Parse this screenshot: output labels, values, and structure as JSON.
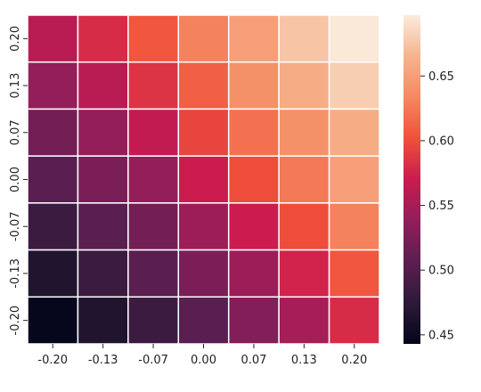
{
  "chart_data": {
    "type": "heatmap",
    "title": "",
    "xlabel": "",
    "ylabel": "",
    "x_categories": [
      "-0.20",
      "-0.13",
      "-0.07",
      "0.00",
      "0.07",
      "0.13",
      "0.20"
    ],
    "y_categories": [
      "0.20",
      "0.13",
      "0.07",
      "0.00",
      "-0.07",
      "-0.13",
      "-0.20"
    ],
    "values": [
      [
        0.56,
        0.58,
        0.605,
        0.63,
        0.65,
        0.675,
        0.695
      ],
      [
        0.54,
        0.56,
        0.585,
        0.61,
        0.64,
        0.66,
        0.68
      ],
      [
        0.52,
        0.54,
        0.565,
        0.595,
        0.62,
        0.64,
        0.66
      ],
      [
        0.505,
        0.525,
        0.54,
        0.57,
        0.6,
        0.625,
        0.65
      ],
      [
        0.485,
        0.505,
        0.52,
        0.545,
        0.57,
        0.6,
        0.63
      ],
      [
        0.465,
        0.485,
        0.505,
        0.525,
        0.545,
        0.575,
        0.605
      ],
      [
        0.445,
        0.465,
        0.485,
        0.505,
        0.53,
        0.55,
        0.58
      ]
    ],
    "colorbar": {
      "min": 0.443,
      "max": 0.697,
      "ticks": [
        0.45,
        0.5,
        0.55,
        0.6,
        0.65
      ],
      "tick_labels": [
        "0.45",
        "0.50",
        "0.55",
        "0.60",
        "0.65"
      ]
    },
    "colormap": {
      "name": "rocket",
      "stops": [
        "#03051a",
        "#2d1a39",
        "#5c1e51",
        "#911e5b",
        "#cb1b4f",
        "#f0503a",
        "#f58860",
        "#f6b48e",
        "#faebdd"
      ]
    },
    "cell_border_color": "#ffffff",
    "grid": false,
    "legend": "colorbar-right"
  }
}
